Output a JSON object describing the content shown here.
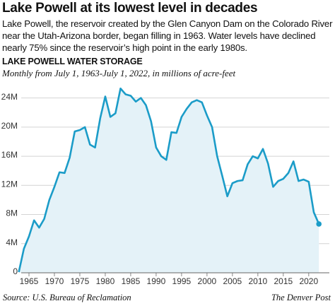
{
  "chart_data": {
    "type": "line",
    "title": "Lake Powell at its lowest level in decades",
    "description": "Lake Powell, the reservoir created by the Glen Canyon Dam on the Colorado River near the Utah-Arizona border, began filling in 1963. Water levels have declined nearly 75% since the reservoir’s high point in the early 1980s.",
    "chart_title": "LAKE POWELL WATER STORAGE",
    "subtitle": "Monthly from July 1, 1963-July 1, 2022, in millions of acre-feet",
    "source": "Source: U.S. Bureau of Reclamation",
    "credit": "The Denver Post",
    "x": [
      1963,
      1964,
      1965,
      1966,
      1967,
      1968,
      1969,
      1970,
      1971,
      1972,
      1973,
      1974,
      1975,
      1976,
      1977,
      1978,
      1979,
      1980,
      1981,
      1982,
      1983,
      1984,
      1985,
      1986,
      1987,
      1988,
      1989,
      1990,
      1991,
      1992,
      1993,
      1994,
      1995,
      1996,
      1997,
      1998,
      1999,
      2000,
      2001,
      2002,
      2003,
      2004,
      2005,
      2006,
      2007,
      2008,
      2009,
      2010,
      2011,
      2012,
      2013,
      2014,
      2015,
      2016,
      2017,
      2018,
      2019,
      2020,
      2021,
      2022
    ],
    "series": [
      {
        "name": "Lake Powell water storage",
        "color": "#1b9cc8",
        "values": [
          0.1,
          3.3,
          5.0,
          7.2,
          6.2,
          7.4,
          10.0,
          11.8,
          13.8,
          13.7,
          15.8,
          19.4,
          19.6,
          20.0,
          17.6,
          17.2,
          21.2,
          24.2,
          21.4,
          21.9,
          25.3,
          24.5,
          24.3,
          23.5,
          24.0,
          23.0,
          20.8,
          17.2,
          16.0,
          15.5,
          19.3,
          19.2,
          21.4,
          22.5,
          23.4,
          23.7,
          23.4,
          21.6,
          20.0,
          16.0,
          13.3,
          10.5,
          12.3,
          12.6,
          12.7,
          14.9,
          16.0,
          15.7,
          17.0,
          15.0,
          11.8,
          12.6,
          12.9,
          13.7,
          15.3,
          12.6,
          12.8,
          12.5,
          8.3,
          6.7
        ]
      }
    ],
    "area_color": "#e4f2f8",
    "xlim": [
      1962.5,
      2023.5
    ],
    "xticks": [
      1965,
      1970,
      1975,
      1980,
      1985,
      1990,
      1995,
      2000,
      2005,
      2010,
      2015,
      2020
    ],
    "ylim": [
      0,
      26
    ],
    "yticks": [
      0,
      {
        "value": 4,
        "label": "4M"
      },
      {
        "value": 8,
        "label": "8M"
      },
      {
        "value": 12,
        "label": "12M"
      },
      {
        "value": 16,
        "label": "16M"
      },
      {
        "value": 20,
        "label": "20M"
      },
      {
        "value": 24,
        "label": "24M"
      }
    ],
    "grid": true
  }
}
